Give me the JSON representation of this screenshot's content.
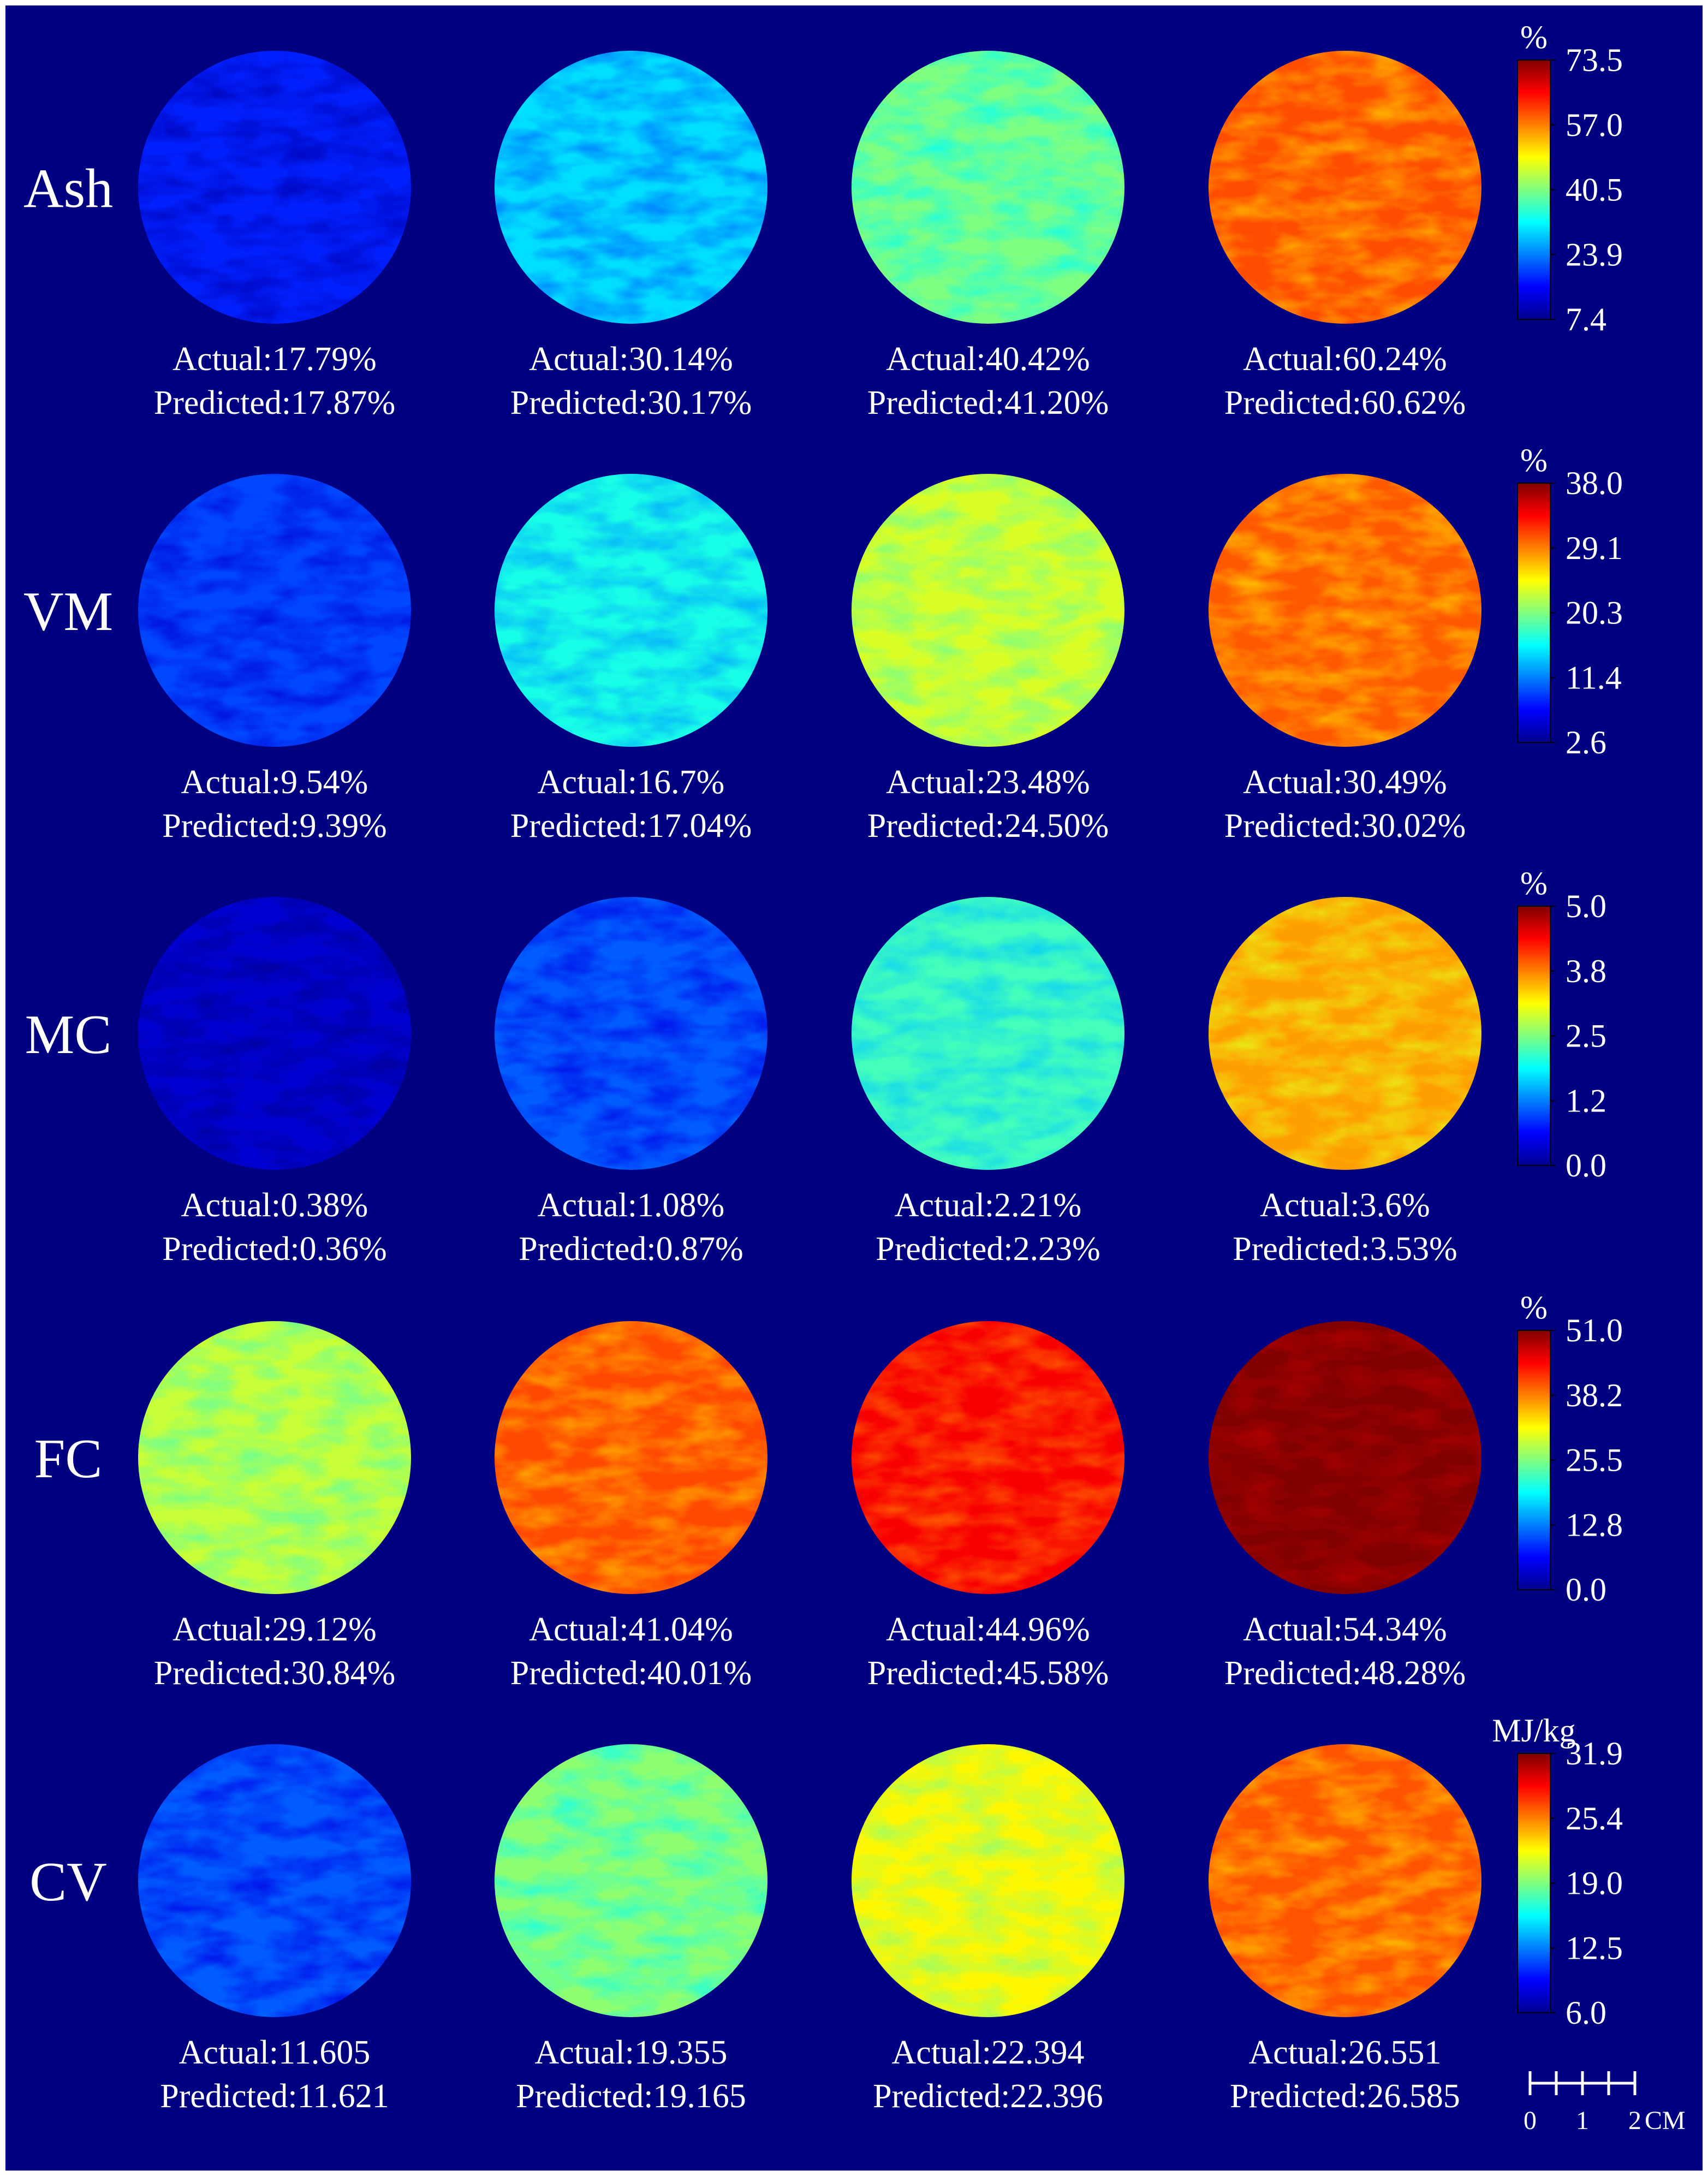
{
  "rows": [
    {
      "label": "Ash",
      "unit": "%",
      "ticks": [
        "73.5",
        "57.0",
        "40.5",
        "23.9",
        "7.4"
      ],
      "range": [
        7.4,
        73.5
      ],
      "samples": [
        {
          "actual": "Actual:17.79%",
          "predicted": "Predicted:17.87%",
          "actual_value": 17.79
        },
        {
          "actual": "Actual:30.14%",
          "predicted": "Predicted:30.17%",
          "actual_value": 30.14
        },
        {
          "actual": "Actual:40.42%",
          "predicted": "Predicted:41.20%",
          "actual_value": 40.42
        },
        {
          "actual": "Actual:60.24%",
          "predicted": "Predicted:60.62%",
          "actual_value": 60.24
        }
      ]
    },
    {
      "label": "VM",
      "unit": "%",
      "ticks": [
        "38.0",
        "29.1",
        "20.3",
        "11.4",
        "2.6"
      ],
      "range": [
        2.6,
        38.0
      ],
      "samples": [
        {
          "actual": "Actual:9.54%",
          "predicted": "Predicted:9.39%",
          "actual_value": 9.54
        },
        {
          "actual": "Actual:16.7%",
          "predicted": "Predicted:17.04%",
          "actual_value": 16.7
        },
        {
          "actual": "Actual:23.48%",
          "predicted": "Predicted:24.50%",
          "actual_value": 23.48
        },
        {
          "actual": "Actual:30.49%",
          "predicted": "Predicted:30.02%",
          "actual_value": 30.49
        }
      ]
    },
    {
      "label": "MC",
      "unit": "%",
      "ticks": [
        "5.0",
        "3.8",
        "2.5",
        "1.2",
        "0.0"
      ],
      "range": [
        0.0,
        5.0
      ],
      "samples": [
        {
          "actual": "Actual:0.38%",
          "predicted": "Predicted:0.36%",
          "actual_value": 0.38
        },
        {
          "actual": "Actual:1.08%",
          "predicted": "Predicted:0.87%",
          "actual_value": 1.08
        },
        {
          "actual": "Actual:2.21%",
          "predicted": "Predicted:2.23%",
          "actual_value": 2.21
        },
        {
          "actual": "Actual:3.6%",
          "predicted": "Predicted:3.53%",
          "actual_value": 3.6
        }
      ]
    },
    {
      "label": "FC",
      "unit": "%",
      "ticks": [
        "51.0",
        "38.2",
        "25.5",
        "12.8",
        "0.0"
      ],
      "range": [
        0.0,
        51.0
      ],
      "samples": [
        {
          "actual": "Actual:29.12%",
          "predicted": "Predicted:30.84%",
          "actual_value": 29.12
        },
        {
          "actual": "Actual:41.04%",
          "predicted": "Predicted:40.01%",
          "actual_value": 41.04
        },
        {
          "actual": "Actual:44.96%",
          "predicted": "Predicted:45.58%",
          "actual_value": 44.96
        },
        {
          "actual": "Actual:54.34%",
          "predicted": "Predicted:48.28%",
          "actual_value": 54.34
        }
      ]
    },
    {
      "label": "CV",
      "unit": "MJ/kg",
      "ticks": [
        "31.9",
        "25.4",
        "19.0",
        "12.5",
        "6.0"
      ],
      "range": [
        6.0,
        31.9
      ],
      "samples": [
        {
          "actual": "Actual:11.605",
          "predicted": "Predicted:11.621",
          "actual_value": 11.605
        },
        {
          "actual": "Actual:19.355",
          "predicted": "Predicted:19.165",
          "actual_value": 19.355
        },
        {
          "actual": "Actual:22.394",
          "predicted": "Predicted:22.396",
          "actual_value": 22.394
        },
        {
          "actual": "Actual:26.551",
          "predicted": "Predicted:26.585",
          "actual_value": 26.551
        }
      ]
    }
  ],
  "scale_bar": {
    "labels": [
      "0",
      "1",
      "2"
    ],
    "unit": "CM"
  },
  "colors": {
    "background": "#000080",
    "text": "#ffffff",
    "colormap": [
      "#00008f",
      "#0000ff",
      "#00ffff",
      "#ffff00",
      "#ff0000",
      "#800000"
    ]
  }
}
